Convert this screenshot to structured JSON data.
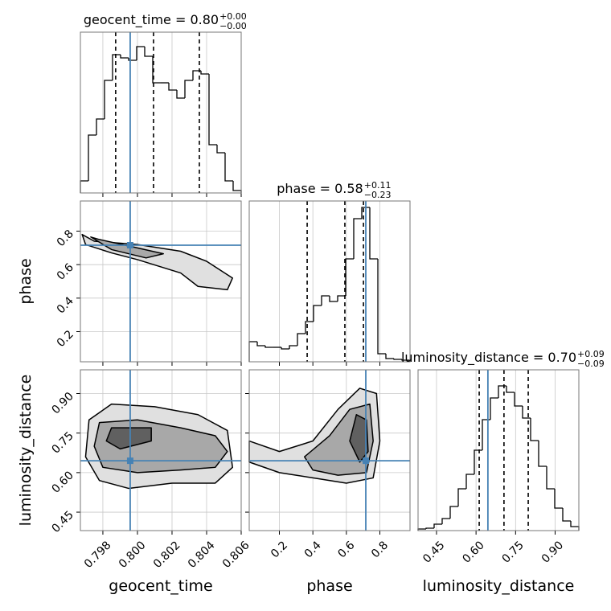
{
  "chart_data": [
    {
      "type": "histogram",
      "title": "geocent_time = 0.80",
      "title_upper": "+0.00",
      "title_lower": "−0.00",
      "bins": [
        0.7967,
        0.797165,
        0.79763,
        0.798095,
        0.79856,
        0.799025,
        0.79949,
        0.799955,
        0.80042,
        0.800885,
        0.80135,
        0.801815,
        0.80228,
        0.802745,
        0.80321,
        0.803675,
        0.80414,
        0.804605,
        0.80507,
        0.805535,
        0.806
      ],
      "counts": [
        15,
        72,
        92,
        140,
        172,
        168,
        165,
        182,
        170,
        137,
        137,
        128,
        118,
        140,
        152,
        148,
        60,
        50,
        15,
        3
      ],
      "xlim": [
        0.7967,
        0.806
      ],
      "ylim": [
        0,
        200
      ],
      "quantiles": [
        0.79874,
        0.80093,
        0.80358
      ],
      "truth": 0.79958,
      "color": "#000000",
      "truth_color": "#4682b4",
      "grid": true
    },
    {
      "type": "contour",
      "ylabel": "phase",
      "xlim": [
        0.7967,
        0.806
      ],
      "ylim": [
        0.02,
        0.98
      ],
      "yticks": [
        0.2,
        0.4,
        0.6,
        0.8
      ],
      "truth_x": 0.79958,
      "truth_y": 0.716,
      "truth_color": "#4682b4",
      "grid": true,
      "levels": [
        {
          "fill": "#e0e0e0",
          "x": [
            0.7968,
            0.7975,
            0.8,
            0.8025,
            0.804,
            0.8055,
            0.8052,
            0.8035,
            0.8025,
            0.8,
            0.7985,
            0.797
          ],
          "y": [
            0.78,
            0.74,
            0.72,
            0.68,
            0.62,
            0.52,
            0.45,
            0.47,
            0.55,
            0.63,
            0.67,
            0.72
          ]
        },
        {
          "fill": "#a8a8a8",
          "x": [
            0.7973,
            0.7978,
            0.8,
            0.8015,
            0.8005,
            0.7985
          ],
          "y": [
            0.765,
            0.75,
            0.7,
            0.665,
            0.64,
            0.69
          ]
        }
      ]
    },
    {
      "type": "histogram",
      "title": "phase = 0.58",
      "title_upper": "+0.11",
      "title_lower": "−0.23",
      "bins": [
        0.02,
        0.068,
        0.116,
        0.164,
        0.212,
        0.26,
        0.308,
        0.356,
        0.404,
        0.452,
        0.5,
        0.548,
        0.596,
        0.644,
        0.692,
        0.74,
        0.788,
        0.836,
        0.884,
        0.932,
        0.98
      ],
      "counts": [
        25,
        20,
        18,
        18,
        16,
        20,
        35,
        50,
        70,
        82,
        75,
        82,
        128,
        178,
        192,
        128,
        10,
        4,
        3,
        2
      ],
      "xlim": [
        0.02,
        0.98
      ],
      "ylim": [
        0,
        200
      ],
      "quantiles": [
        0.366,
        0.591,
        0.702
      ],
      "truth": 0.716,
      "color": "#000000",
      "truth_color": "#4682b4",
      "grid": true
    },
    {
      "type": "contour",
      "xlabel": "geocent_time",
      "ylabel": "luminosity_distance",
      "xlim": [
        0.7967,
        0.806
      ],
      "ylim": [
        0.38,
        0.99
      ],
      "xticks": [
        0.798,
        {
          "value": 0.8,
          "label": "0.800"
        },
        0.802,
        0.804,
        0.806
      ],
      "yticks": [
        0.45,
        {
          "value": 0.6,
          "label": "0.60"
        },
        0.75,
        {
          "value": 0.9,
          "label": "0.90"
        }
      ],
      "truth_x": 0.79958,
      "truth_y": 0.645,
      "truth_color": "#4682b4",
      "grid": true,
      "levels": [
        {
          "fill": "#e0e0e0",
          "x": [
            0.797,
            0.7972,
            0.7985,
            0.801,
            0.8035,
            0.8052,
            0.8055,
            0.8045,
            0.802,
            0.7995,
            0.7978
          ],
          "y": [
            0.66,
            0.8,
            0.86,
            0.85,
            0.82,
            0.76,
            0.62,
            0.56,
            0.56,
            0.54,
            0.57
          ]
        },
        {
          "fill": "#a8a8a8",
          "x": [
            0.7975,
            0.7978,
            0.8,
            0.8025,
            0.8045,
            0.8052,
            0.8045,
            0.8025,
            0.8,
            0.798
          ],
          "y": [
            0.7,
            0.79,
            0.8,
            0.77,
            0.74,
            0.68,
            0.62,
            0.61,
            0.6,
            0.62
          ]
        },
        {
          "fill": "#606060",
          "x": [
            0.7982,
            0.7985,
            0.8008,
            0.8008,
            0.799
          ],
          "y": [
            0.72,
            0.77,
            0.77,
            0.72,
            0.69
          ]
        }
      ]
    },
    {
      "type": "contour",
      "xlabel": "phase",
      "xlim": [
        0.02,
        0.98
      ],
      "ylim": [
        0.38,
        0.99
      ],
      "xticks": [
        0.2,
        0.4,
        0.6,
        0.8
      ],
      "truth_x": 0.716,
      "truth_y": 0.645,
      "truth_color": "#4682b4",
      "grid": true,
      "levels": [
        {
          "fill": "#e0e0e0",
          "x": [
            0.02,
            0.2,
            0.4,
            0.55,
            0.68,
            0.78,
            0.8,
            0.76,
            0.6,
            0.4,
            0.2,
            0.02
          ],
          "y": [
            0.72,
            0.68,
            0.72,
            0.84,
            0.92,
            0.9,
            0.72,
            0.58,
            0.56,
            0.58,
            0.6,
            0.64
          ]
        },
        {
          "fill": "#a8a8a8",
          "x": [
            0.35,
            0.5,
            0.62,
            0.74,
            0.76,
            0.72,
            0.55,
            0.4
          ],
          "y": [
            0.66,
            0.74,
            0.84,
            0.86,
            0.72,
            0.6,
            0.59,
            0.61
          ]
        },
        {
          "fill": "#606060",
          "x": [
            0.62,
            0.66,
            0.72,
            0.73,
            0.68
          ],
          "y": [
            0.72,
            0.82,
            0.8,
            0.68,
            0.64
          ]
        }
      ]
    },
    {
      "type": "histogram",
      "title": "luminosity_distance = 0.70",
      "title_upper": "+0.09",
      "title_lower": "−0.09",
      "xlabel": "luminosity_distance",
      "bins": [
        0.38,
        0.4105,
        0.441,
        0.4715,
        0.502,
        0.5325,
        0.563,
        0.5935,
        0.624,
        0.6545,
        0.685,
        0.7155,
        0.746,
        0.7765,
        0.807,
        0.8375,
        0.868,
        0.8985,
        0.929,
        0.9595,
        0.99
      ],
      "counts": [
        2,
        3,
        8,
        15,
        30,
        52,
        70,
        100,
        138,
        165,
        180,
        172,
        155,
        140,
        112,
        80,
        52,
        28,
        12,
        5
      ],
      "xlim": [
        0.38,
        0.99
      ],
      "ylim": [
        0,
        200
      ],
      "xticks": [
        0.45,
        {
          "value": 0.6,
          "label": "0.60"
        },
        0.75,
        {
          "value": 0.9,
          "label": "0.90"
        }
      ],
      "quantiles": [
        0.612,
        0.706,
        0.798
      ],
      "truth": 0.645,
      "color": "#000000",
      "truth_color": "#4682b4",
      "grid": true
    }
  ]
}
